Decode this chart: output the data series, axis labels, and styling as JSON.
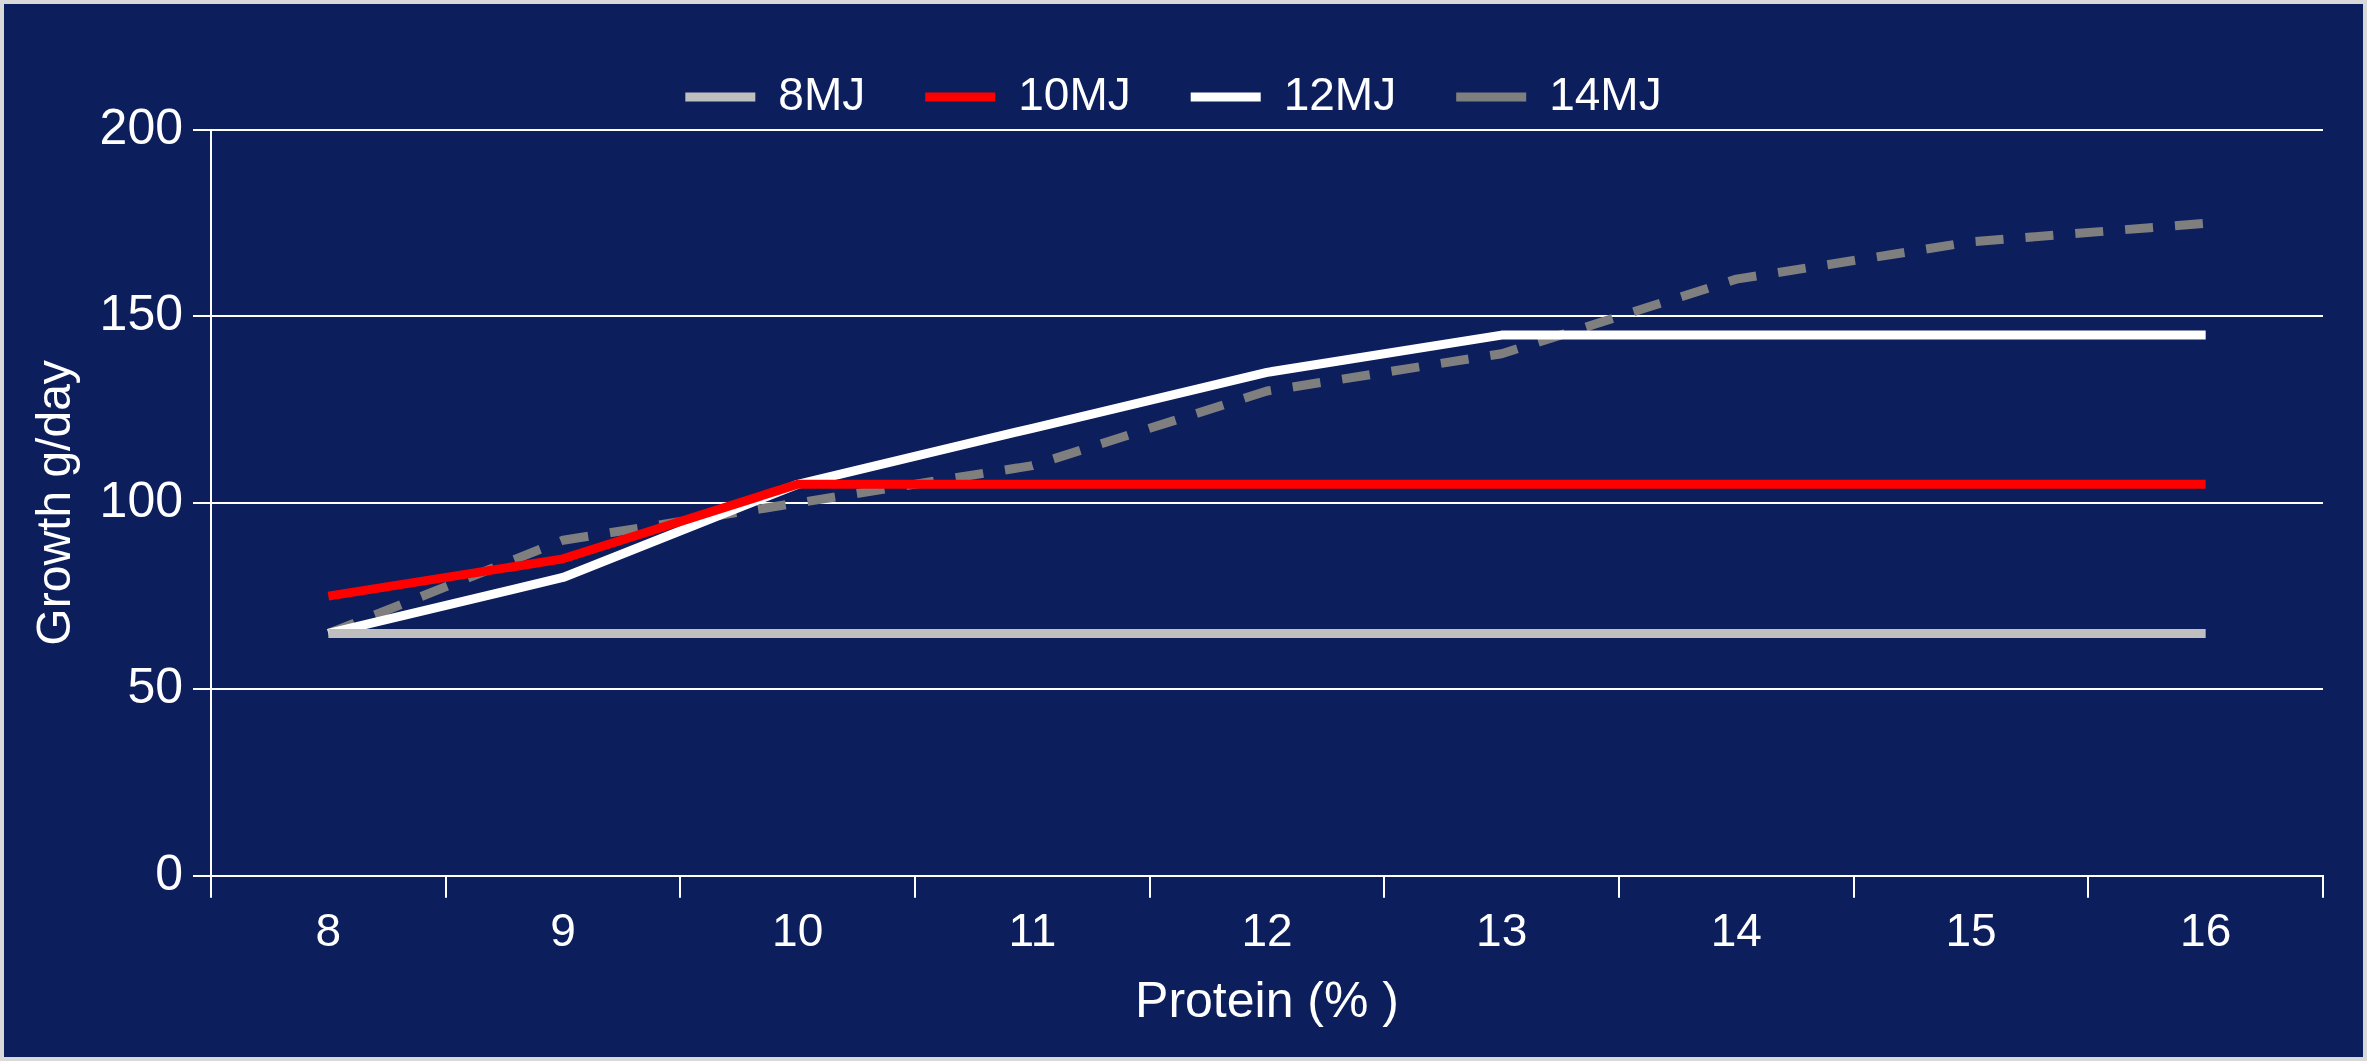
{
  "chart_data": {
    "type": "line",
    "xlabel": "Protein (% )",
    "ylabel": "Growth g/day",
    "categories": [
      "8",
      "9",
      "10",
      "11",
      "12",
      "13",
      "14",
      "15",
      "16"
    ],
    "series": [
      {
        "name": "8MJ",
        "color": "#bfbfbf",
        "line_style": "solid",
        "values": [
          65,
          65,
          65,
          65,
          65,
          65,
          65,
          65,
          65
        ]
      },
      {
        "name": "10MJ",
        "color": "#ff0000",
        "line_style": "solid",
        "values": [
          75,
          85,
          105,
          105,
          105,
          105,
          105,
          105,
          105
        ]
      },
      {
        "name": "12MJ",
        "color": "#ffffff",
        "line_style": "solid",
        "values": [
          65,
          80,
          105,
          120,
          135,
          145,
          145,
          145,
          145
        ]
      },
      {
        "name": "14MJ",
        "color": "#7f7f7f",
        "line_style": "dashed",
        "values": [
          65,
          90,
          100,
          110,
          130,
          140,
          160,
          170,
          175
        ]
      }
    ],
    "ylim": [
      0,
      200
    ],
    "yticks": [
      0,
      50,
      100,
      150,
      200
    ],
    "grid": "y",
    "legend": "top",
    "marker": "none"
  }
}
